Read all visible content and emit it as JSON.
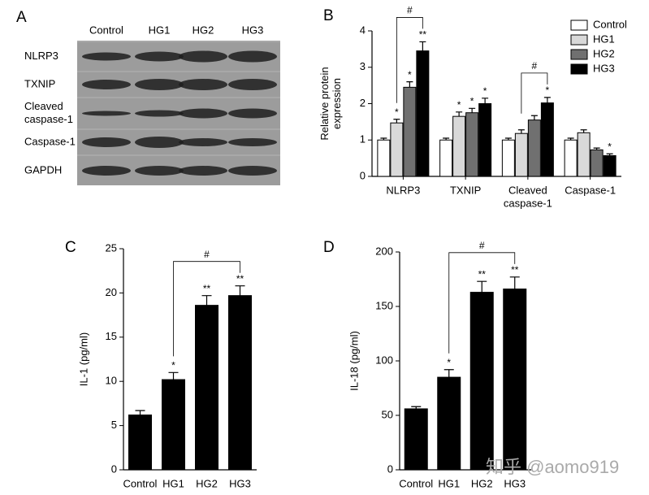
{
  "blot": {
    "panel_label": "A",
    "columns": [
      "Control",
      "HG1",
      "HG2",
      "HG3"
    ],
    "rows": [
      [
        "NLRP3"
      ],
      [
        "TXNIP"
      ],
      [
        "Cleaved",
        "caspase-1"
      ],
      [
        "Caspase-1"
      ],
      [
        "GAPDH"
      ]
    ]
  },
  "watermark": "知乎 @aomo919",
  "chart_data": [
    {
      "type": "bar",
      "panel_label": "B",
      "ylabel": [
        "Relative protein",
        "expression"
      ],
      "categories": [
        "NLRP3",
        "TXNIP",
        [
          "Cleaved",
          "caspase-1"
        ],
        "Caspase-1"
      ],
      "series": [
        {
          "name": "Control",
          "color": "#ffffff",
          "values": [
            1,
            1,
            1,
            1
          ],
          "errors": [
            0.05,
            0.05,
            0.05,
            0.05
          ],
          "annotations": [
            null,
            null,
            null,
            null
          ]
        },
        {
          "name": "HG1",
          "color": "#d9d9d9",
          "values": [
            1.47,
            1.65,
            1.18,
            1.2
          ],
          "errors": [
            0.1,
            0.12,
            0.1,
            0.08
          ],
          "annotations": [
            "*",
            "*",
            null,
            null
          ]
        },
        {
          "name": "HG2",
          "color": "#707070",
          "values": [
            2.45,
            1.75,
            1.55,
            0.73
          ],
          "errors": [
            0.15,
            0.12,
            0.12,
            0.05
          ],
          "annotations": [
            "*",
            "*",
            null,
            null
          ]
        },
        {
          "name": "HG3",
          "color": "#000000",
          "values": [
            3.45,
            2.0,
            2.02,
            0.57
          ],
          "errors": [
            0.25,
            0.15,
            0.15,
            0.05
          ],
          "annotations": [
            "**",
            "*",
            "*",
            "*"
          ]
        }
      ],
      "brackets": [
        {
          "category": 0,
          "from": 1,
          "to": 3,
          "label": "#"
        },
        {
          "category": 2,
          "from": 1,
          "to": 3,
          "label": "#"
        }
      ],
      "ylim": [
        0,
        4
      ],
      "yticks": [
        0,
        1,
        2,
        3,
        4
      ],
      "legend": "top-right",
      "grid": false
    },
    {
      "type": "bar",
      "panel_label": "C",
      "ylabel": [
        "IL-1 (pg/ml)"
      ],
      "categories": [
        "Control",
        "HG1",
        "HG2",
        "HG3"
      ],
      "color": "#000000",
      "values": [
        6.2,
        10.2,
        18.6,
        19.7
      ],
      "errors": [
        0.5,
        0.8,
        1.1,
        1.1
      ],
      "annotations": [
        null,
        "*",
        "**",
        "**"
      ],
      "brackets": [
        {
          "from": 1,
          "to": 3,
          "label": "#"
        }
      ],
      "ylim": [
        0,
        25
      ],
      "yticks": [
        0,
        5,
        10,
        15,
        20,
        25
      ],
      "grid": false
    },
    {
      "type": "bar",
      "panel_label": "D",
      "ylabel": [
        "IL-18 (pg/ml)"
      ],
      "categories": [
        "Control",
        "HG1",
        "HG2",
        "HG3"
      ],
      "color": "#000000",
      "values": [
        56,
        85,
        163,
        166
      ],
      "errors": [
        2,
        7,
        10,
        11
      ],
      "annotations": [
        null,
        "*",
        "**",
        "**"
      ],
      "brackets": [
        {
          "from": 1,
          "to": 3,
          "label": "#"
        }
      ],
      "ylim": [
        0,
        200
      ],
      "yticks": [
        0,
        50,
        100,
        150,
        200
      ],
      "grid": false
    }
  ]
}
